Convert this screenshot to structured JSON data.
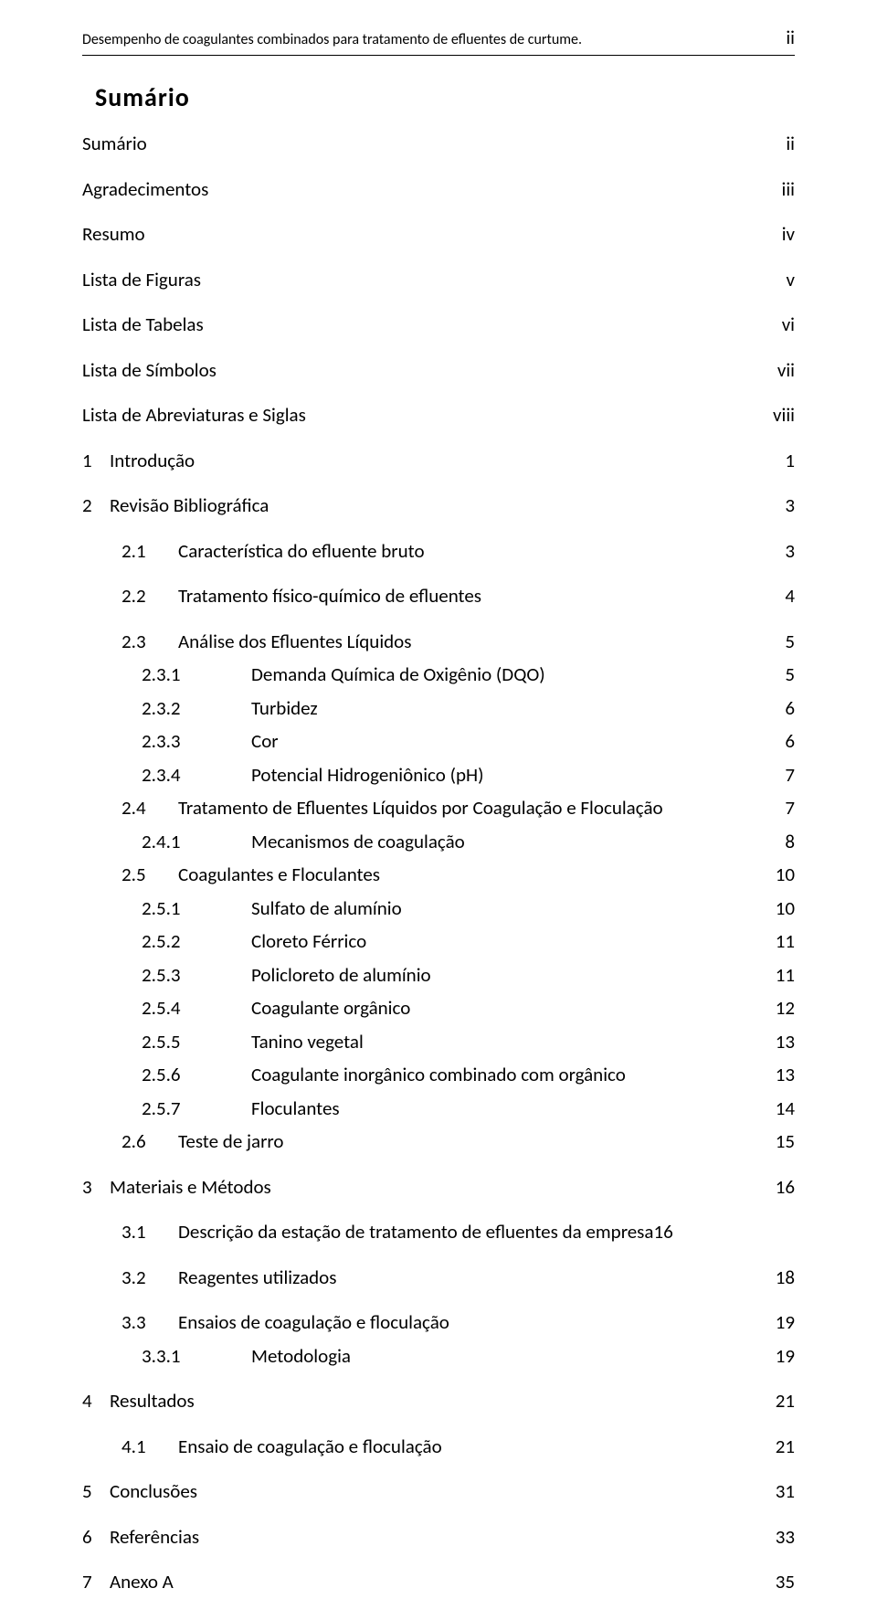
{
  "header": {
    "title": "Desempenho de coagulantes combinados para tratamento de efluentes de curtume.",
    "page_marker": "ii"
  },
  "toc_heading": "Sumário",
  "toc": [
    {
      "level": "lvl1b",
      "num": "",
      "title": "Sumário",
      "page": "ii",
      "gap": ""
    },
    {
      "level": "lvl1b",
      "num": "",
      "title": "Agradecimentos",
      "page": "iii",
      "gap": "gap-lg"
    },
    {
      "level": "lvl1b",
      "num": "",
      "title": "Resumo",
      "page": "iv",
      "gap": "gap-lg"
    },
    {
      "level": "lvl1b",
      "num": "",
      "title": "Lista de Figuras",
      "page": "v",
      "gap": "gap-lg"
    },
    {
      "level": "lvl1b",
      "num": "",
      "title": "Lista de Tabelas",
      "page": "vi",
      "gap": "gap-lg"
    },
    {
      "level": "lvl1b",
      "num": "",
      "title": "Lista de Símbolos",
      "page": "vii",
      "gap": "gap-lg"
    },
    {
      "level": "lvl1b",
      "num": "",
      "title": "Lista de Abreviaturas e Siglas",
      "page": "viii",
      "gap": "gap-lg"
    },
    {
      "level": "lvl1",
      "num": "1",
      "title": "Introdução",
      "page": "1",
      "gap": "gap-lg"
    },
    {
      "level": "lvl1",
      "num": "2",
      "title": "Revisão Bibliográfica",
      "page": "3",
      "gap": "gap-lg"
    },
    {
      "level": "lvl2",
      "num": "2.1",
      "title": "Característica do efluente bruto",
      "page": "3",
      "gap": "gap-lg"
    },
    {
      "level": "lvl2",
      "num": "2.2",
      "title": "Tratamento físico-químico de efluentes",
      "page": "4",
      "gap": "gap-lg"
    },
    {
      "level": "lvl2",
      "num": "2.3",
      "title": "Análise dos Efluentes Líquidos",
      "page": "5",
      "gap": "gap-lg"
    },
    {
      "level": "lvl3",
      "num": "2.3.1",
      "title": "Demanda Química de Oxigênio (DQO)",
      "page": "5",
      "gap": ""
    },
    {
      "level": "lvl3",
      "num": "2.3.2",
      "title": "Turbidez",
      "page": "6",
      "gap": ""
    },
    {
      "level": "lvl3",
      "num": "2.3.3",
      "title": "Cor",
      "page": "6",
      "gap": ""
    },
    {
      "level": "lvl3",
      "num": "2.3.4",
      "title": "Potencial Hidrogeniônico (pH)",
      "page": "7",
      "gap": ""
    },
    {
      "level": "lvl2",
      "num": "2.4",
      "title": "Tratamento de Efluentes Líquidos por Coagulação e Floculação",
      "page": "7",
      "gap": ""
    },
    {
      "level": "lvl3",
      "num": "2.4.1",
      "title": "Mecanismos de coagulação",
      "page": "8",
      "gap": ""
    },
    {
      "level": "lvl2",
      "num": "2.5",
      "title": "Coagulantes e Floculantes",
      "page": "10",
      "gap": ""
    },
    {
      "level": "lvl3",
      "num": "2.5.1",
      "title": "Sulfato de alumínio",
      "page": "10",
      "gap": ""
    },
    {
      "level": "lvl3",
      "num": "2.5.2",
      "title": "Cloreto Férrico",
      "page": "11",
      "gap": ""
    },
    {
      "level": "lvl3",
      "num": "2.5.3",
      "title": "Policloreto de alumínio",
      "page": "11",
      "gap": ""
    },
    {
      "level": "lvl3",
      "num": "2.5.4",
      "title": "Coagulante orgânico",
      "page": "12",
      "gap": ""
    },
    {
      "level": "lvl3",
      "num": "2.5.5",
      "title": "Tanino vegetal",
      "page": "13",
      "gap": ""
    },
    {
      "level": "lvl3",
      "num": "2.5.6",
      "title": "Coagulante inorgânico combinado com orgânico",
      "page": "13",
      "gap": ""
    },
    {
      "level": "lvl3",
      "num": "2.5.7",
      "title": "Floculantes",
      "page": "14",
      "gap": ""
    },
    {
      "level": "lvl2",
      "num": "2.6",
      "title": "Teste de jarro",
      "page": "15",
      "gap": ""
    },
    {
      "level": "lvl1",
      "num": "3",
      "title": "Materiais e Métodos",
      "page": "16",
      "gap": "gap-lg"
    },
    {
      "level": "lvl2",
      "num": "3.1",
      "title": "Descrição da estação de tratamento de efluentes da empresa",
      "page": "16",
      "gap": "gap-lg",
      "no_gap_page": true
    },
    {
      "level": "lvl2",
      "num": "3.2",
      "title": "Reagentes utilizados",
      "page": "18",
      "gap": "gap-lg"
    },
    {
      "level": "lvl2",
      "num": "3.3",
      "title": "Ensaios de coagulação e floculação",
      "page": "19",
      "gap": "gap-lg"
    },
    {
      "level": "lvl3",
      "num": "3.3.1",
      "title": "Metodologia",
      "page": "19",
      "gap": ""
    },
    {
      "level": "lvl1",
      "num": "4",
      "title": "Resultados",
      "page": "21",
      "gap": "gap-lg"
    },
    {
      "level": "lvl2",
      "num": "4.1",
      "title": "Ensaio de coagulação e floculação",
      "page": "21",
      "gap": "gap-lg"
    },
    {
      "level": "lvl1",
      "num": "5",
      "title": "Conclusões",
      "page": "31",
      "gap": "gap-lg"
    },
    {
      "level": "lvl1",
      "num": "6",
      "title": "Referências",
      "page": "33",
      "gap": "gap-lg"
    },
    {
      "level": "lvl1",
      "num": "7",
      "title": "Anexo A",
      "page": "35",
      "gap": "gap-lg"
    }
  ]
}
